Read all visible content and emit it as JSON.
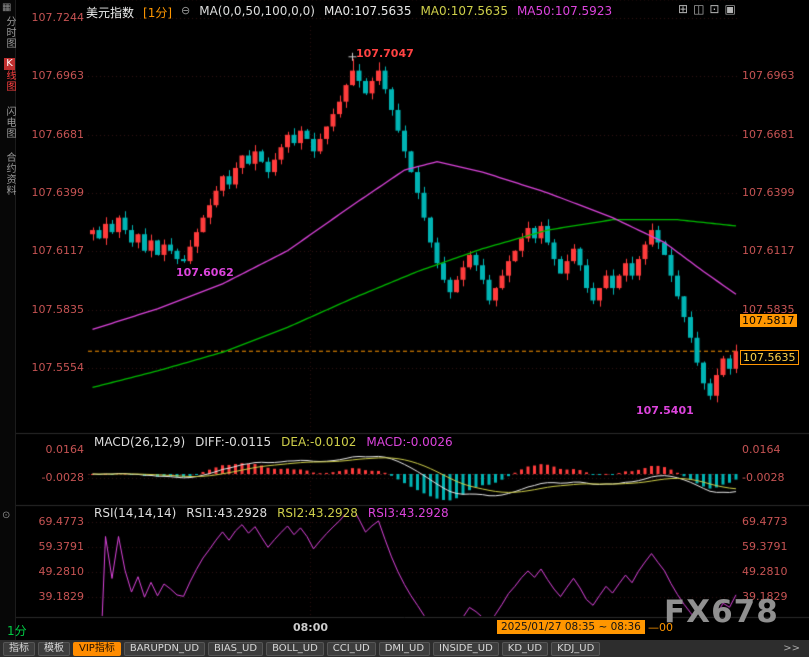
{
  "header": {
    "symbol": "美元指数",
    "period_tag": "[1分]",
    "collapse_icon": "⊖",
    "ma_settings": "MA(0,0,50,100,0,0)",
    "ma0_white": "MA0:107.5635",
    "ma0_yellow": "MA0:107.5635",
    "ma50": "MA50:107.5923"
  },
  "window_icons": [
    "⊞",
    "◫",
    "⊡",
    "▣"
  ],
  "sidebar": {
    "grid_icon": "▦",
    "circle_icon": "⊙",
    "tab_time_chart": "分时图",
    "k_first": "K",
    "k_rest": "线图",
    "tab_lightning": "闪电图",
    "tab_contract_info": "合约资料"
  },
  "axis": {
    "main_left": [
      "107.7244",
      "107.6963",
      "107.6681",
      "107.6399",
      "107.6117",
      "107.5835",
      "107.5554"
    ],
    "main_right": [
      "107.6963",
      "107.6681",
      "107.6399",
      "107.6117",
      "107.5835"
    ],
    "price_tag_upper": "107.5817",
    "price_tag_current": "107.5635",
    "macd_left": [
      "0.0164",
      "-0.0028"
    ],
    "macd_right": [
      "0.0164",
      "-0.0028"
    ],
    "rsi_left": [
      "69.4773",
      "59.3791",
      "49.2810",
      "39.1829"
    ],
    "rsi_right": [
      "69.4773",
      "59.3791",
      "49.2810",
      "39.1829"
    ]
  },
  "annotations": {
    "high": "107.7047",
    "low_left": "107.6062",
    "low_right": "107.5401"
  },
  "macd_header": {
    "title": "MACD(26,12,9)",
    "diff": "DIFF:-0.0115",
    "dea": "DEA:-0.0102",
    "macd": "MACD:-0.0026"
  },
  "rsi_header": {
    "title": "RSI(14,14,14)",
    "rsi1": "RSI1:43.2928",
    "rsi2": "RSI2:43.2928",
    "rsi3": "RSI3:43.2928"
  },
  "time_axis": {
    "label": "08:00",
    "range_box": "2025/01/27 08:35 ~ 08:36",
    "suffix": "—00"
  },
  "watermark": "FX678",
  "period_label": "1分",
  "toolbar": {
    "items": [
      "指标",
      "模板",
      "VIP指标",
      "BARUPDN_UD",
      "BIAS_UD",
      "BOLL_UD",
      "CCI_UD",
      "DMI_UD",
      "INSIDE_UD",
      "KD_UD",
      "KDJ_UD",
      ">>"
    ]
  },
  "colors": {
    "up": "#ff3c3c",
    "down": "#00b4b4",
    "ma50": "#dd44dd",
    "ma100": "#00bb00",
    "accent_orange": "#ff9600",
    "axis_text": "#c65353",
    "diff_line": "#e8e8e8",
    "dea_line": "#cfcf4a",
    "rsi_line": "#dd44dd"
  },
  "chart_data": {
    "type": "candlestick",
    "symbol": "美元指数",
    "interval": "1分",
    "session_range": "2025/01/27 08:35 ~ 08:36",
    "time_label": "08:00",
    "y_axis_range": [
      107.5554,
      107.7244
    ],
    "high_of_day": 107.7047,
    "low_annotated": 107.5401,
    "swing_low_left": 107.6062,
    "current_price": 107.5635,
    "upper_tag_price": 107.5817,
    "open0": 107.62,
    "closes": [
      107.622,
      107.618,
      107.625,
      107.621,
      107.628,
      107.622,
      107.616,
      107.62,
      107.612,
      107.617,
      107.61,
      107.615,
      107.612,
      107.608,
      107.607,
      107.614,
      107.621,
      107.628,
      107.634,
      107.641,
      107.648,
      107.644,
      107.652,
      107.658,
      107.654,
      107.66,
      107.655,
      107.65,
      107.656,
      107.662,
      107.668,
      107.664,
      107.67,
      107.666,
      107.66,
      107.666,
      107.672,
      107.678,
      107.684,
      107.692,
      107.699,
      107.694,
      107.688,
      107.694,
      107.699,
      107.69,
      107.68,
      107.67,
      107.66,
      107.65,
      107.64,
      107.628,
      107.616,
      107.606,
      107.598,
      107.592,
      107.598,
      107.604,
      107.61,
      107.605,
      107.598,
      107.588,
      107.594,
      107.6,
      107.607,
      107.612,
      107.618,
      107.623,
      107.618,
      107.624,
      107.616,
      107.608,
      107.601,
      107.607,
      107.613,
      107.605,
      107.594,
      107.588,
      107.594,
      107.6,
      107.594,
      107.6,
      107.606,
      107.6,
      107.608,
      107.615,
      107.622,
      107.616,
      107.61,
      107.6,
      107.59,
      107.58,
      107.57,
      107.558,
      107.548,
      107.542,
      107.552,
      107.56,
      107.555,
      107.5635
    ],
    "overrides": {
      "14": {
        "low": 107.6062
      },
      "40": {
        "high": 107.7047
      },
      "44": {
        "high": 107.703
      },
      "95": {
        "low": 107.5401
      }
    },
    "ma50_points": [
      [
        0,
        107.574
      ],
      [
        10,
        107.584
      ],
      [
        20,
        107.596
      ],
      [
        30,
        107.612
      ],
      [
        40,
        107.634
      ],
      [
        48,
        107.651
      ],
      [
        53,
        107.655
      ],
      [
        60,
        107.65
      ],
      [
        70,
        107.64
      ],
      [
        80,
        107.628
      ],
      [
        88,
        107.616
      ],
      [
        94,
        107.602
      ],
      [
        99,
        107.591
      ]
    ],
    "ma100_points": [
      [
        0,
        107.546
      ],
      [
        10,
        107.554
      ],
      [
        20,
        107.563
      ],
      [
        30,
        107.575
      ],
      [
        40,
        107.589
      ],
      [
        50,
        107.602
      ],
      [
        60,
        107.613
      ],
      [
        70,
        107.622
      ],
      [
        80,
        107.627
      ],
      [
        90,
        107.627
      ],
      [
        99,
        107.624
      ]
    ],
    "indicators": {
      "macd": {
        "params": "26,12,9",
        "diff": -0.0115,
        "dea": -0.0102,
        "macd": -0.0026
      },
      "rsi": {
        "params": "14,14,14",
        "rsi1": 43.2928,
        "rsi2": 43.2928,
        "rsi3": 43.2928
      }
    }
  }
}
